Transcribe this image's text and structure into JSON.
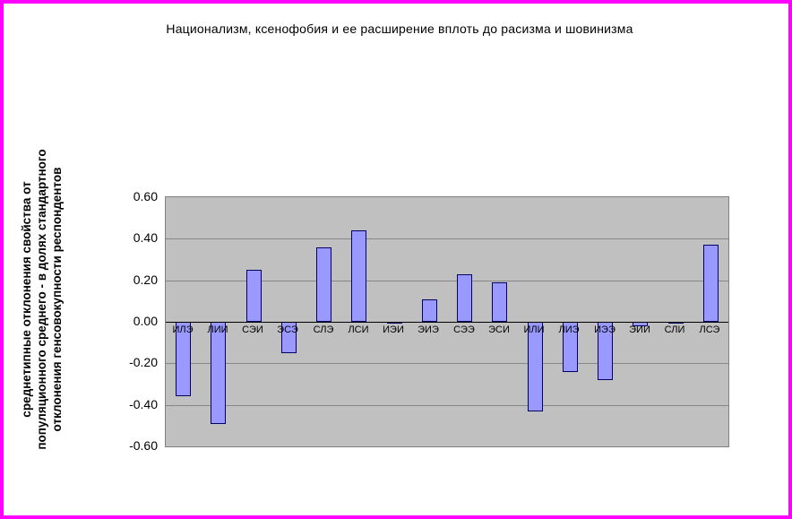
{
  "colors": {
    "page_border": "#FF00FF",
    "plot_background": "#C0C0C0",
    "bar_fill": "#9999FF",
    "bar_border": "#000066",
    "gridline": "#868686"
  },
  "chart_data": {
    "type": "bar",
    "title": "Национализм, ксенофобия и ее расширение вплоть до расизма и шовинизма",
    "ylabel_lines": [
      "среднетипные отклонения свойства от",
      "популяционного среднего - в долях стандартного",
      "отклонения генсовокупности респондентов"
    ],
    "categories": [
      "ИЛЭ",
      "ЛИИ",
      "СЭИ",
      "ЭСЭ",
      "СЛЭ",
      "ЛСИ",
      "ИЭИ",
      "ЭИЭ",
      "СЭЭ",
      "ЭСИ",
      "ИЛИ",
      "ЛИЭ",
      "ИЭЭ",
      "ЭИИ",
      "СЛИ",
      "ЛСЭ"
    ],
    "values": [
      -0.36,
      -0.49,
      0.25,
      -0.15,
      0.36,
      0.44,
      -0.01,
      0.11,
      0.23,
      0.19,
      -0.43,
      -0.24,
      -0.28,
      -0.02,
      -0.01,
      0.37
    ],
    "ylim": [
      -0.6,
      0.6
    ],
    "ytick_labels": [
      "0.60",
      "0.40",
      "0.20",
      "0.00",
      "-0.20",
      "-0.40",
      "-0.60"
    ],
    "xlabel": "",
    "grid": "horizontal",
    "legend": "none"
  }
}
